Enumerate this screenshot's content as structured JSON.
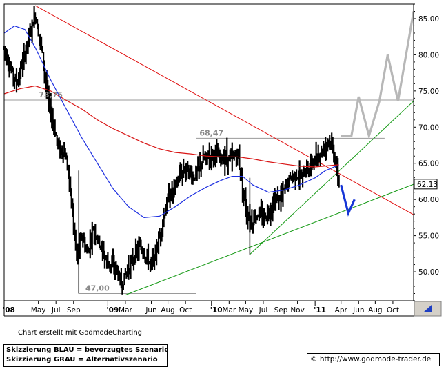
{
  "chart_data": {
    "type": "line",
    "title": "",
    "ylim": [
      46,
      87
    ],
    "y_ticks": [
      "85.00",
      "80.00",
      "75.00",
      "70.00",
      "65.00",
      "60.00",
      "55.00",
      "50.00"
    ],
    "x_ticks": [
      "'08",
      "May",
      "Jul",
      "Sep",
      "'09",
      "Mar",
      "Jun",
      "Aug",
      "Oct",
      "'10",
      "Mar",
      "May",
      "Jul",
      "Sep",
      "Nov",
      "'11",
      "Apr",
      "Jun",
      "Aug",
      "Oct"
    ],
    "last_price": "62.13",
    "annotations": [
      "73,75",
      "68,47",
      "47,00"
    ],
    "price_path": [
      [
        2008.0,
        81.0
      ],
      [
        2008.05,
        78.5
      ],
      [
        2008.12,
        76.0
      ],
      [
        2008.18,
        79.0
      ],
      [
        2008.25,
        83.0
      ],
      [
        2008.3,
        85.5
      ],
      [
        2008.36,
        81.0
      ],
      [
        2008.42,
        74.0
      ],
      [
        2008.48,
        70.0
      ],
      [
        2008.53,
        67.0
      ],
      [
        2008.58,
        66.5
      ],
      [
        2008.62,
        64.0
      ],
      [
        2008.66,
        58.0
      ],
      [
        2008.7,
        52.0
      ],
      [
        2008.75,
        55.0
      ],
      [
        2008.8,
        52.5
      ],
      [
        2008.86,
        56.0
      ],
      [
        2008.92,
        54.0
      ],
      [
        2008.97,
        52.0
      ],
      [
        2009.03,
        51.0
      ],
      [
        2009.08,
        50.5
      ],
      [
        2009.13,
        48.0
      ],
      [
        2009.18,
        50.0
      ],
      [
        2009.25,
        52.0
      ],
      [
        2009.31,
        53.5
      ],
      [
        2009.37,
        52.0
      ],
      [
        2009.42,
        51.0
      ],
      [
        2009.47,
        53.0
      ],
      [
        2009.53,
        57.0
      ],
      [
        2009.58,
        60.0
      ],
      [
        2009.64,
        61.5
      ],
      [
        2009.7,
        63.5
      ],
      [
        2009.76,
        64.5
      ],
      [
        2009.82,
        63.0
      ],
      [
        2009.87,
        64.0
      ],
      [
        2009.92,
        65.5
      ],
      [
        2009.97,
        66.0
      ],
      [
        2010.03,
        66.5
      ],
      [
        2010.08,
        65.5
      ],
      [
        2010.14,
        66.0
      ],
      [
        2010.2,
        65.5
      ],
      [
        2010.25,
        66.5
      ],
      [
        2010.3,
        62.0
      ],
      [
        2010.34,
        58.0
      ],
      [
        2010.39,
        57.0
      ],
      [
        2010.45,
        58.0
      ],
      [
        2010.5,
        57.5
      ],
      [
        2010.56,
        58.5
      ],
      [
        2010.62,
        60.0
      ],
      [
        2010.68,
        60.5
      ],
      [
        2010.74,
        62.5
      ],
      [
        2010.8,
        63.5
      ],
      [
        2010.86,
        63.0
      ],
      [
        2010.91,
        64.0
      ],
      [
        2010.97,
        65.0
      ],
      [
        2011.03,
        66.0
      ],
      [
        2011.08,
        67.0
      ],
      [
        2011.13,
        68.3
      ],
      [
        2011.17,
        67.0
      ],
      [
        2011.2,
        65.0
      ],
      [
        2011.23,
        62.13
      ]
    ],
    "sma_blue": [
      [
        2008.0,
        83.0
      ],
      [
        2008.1,
        84.0
      ],
      [
        2008.2,
        83.5
      ],
      [
        2008.3,
        81.0
      ],
      [
        2008.45,
        76.5
      ],
      [
        2008.6,
        72.5
      ],
      [
        2008.75,
        68.5
      ],
      [
        2008.9,
        65.0
      ],
      [
        2009.05,
        61.5
      ],
      [
        2009.2,
        59.0
      ],
      [
        2009.35,
        57.5
      ],
      [
        2009.5,
        57.7
      ],
      [
        2009.65,
        59.0
      ],
      [
        2009.8,
        60.5
      ],
      [
        2009.95,
        61.7
      ],
      [
        2010.1,
        62.7
      ],
      [
        2010.2,
        63.2
      ],
      [
        2010.3,
        63.2
      ],
      [
        2010.4,
        62.0
      ],
      [
        2010.55,
        61.0
      ],
      [
        2010.7,
        61.3
      ],
      [
        2010.85,
        62.0
      ],
      [
        2011.0,
        63.0
      ],
      [
        2011.1,
        64.0
      ],
      [
        2011.2,
        64.6
      ],
      [
        2011.23,
        64.7
      ]
    ],
    "sma_red": [
      [
        2008.0,
        74.6
      ],
      [
        2008.15,
        75.3
      ],
      [
        2008.3,
        75.7
      ],
      [
        2008.45,
        75.0
      ],
      [
        2008.6,
        73.7
      ],
      [
        2008.75,
        72.5
      ],
      [
        2008.9,
        71.0
      ],
      [
        2009.05,
        69.8
      ],
      [
        2009.2,
        68.8
      ],
      [
        2009.35,
        67.8
      ],
      [
        2009.5,
        67.0
      ],
      [
        2009.65,
        66.5
      ],
      [
        2009.8,
        66.3
      ],
      [
        2009.95,
        66.0
      ],
      [
        2010.1,
        65.9
      ],
      [
        2010.25,
        65.9
      ],
      [
        2010.4,
        65.6
      ],
      [
        2010.55,
        65.2
      ],
      [
        2010.7,
        64.9
      ],
      [
        2010.85,
        64.6
      ],
      [
        2011.0,
        64.5
      ],
      [
        2011.15,
        64.7
      ],
      [
        2011.23,
        64.8
      ]
    ],
    "resistance_line_red": [
      [
        2008.3,
        86.8
      ],
      [
        2011.95,
        57.9
      ]
    ],
    "support_line_green_long": [
      [
        2009.17,
        46.8
      ],
      [
        2011.95,
        62.1
      ]
    ],
    "support_line_green_short": [
      [
        2010.37,
        52.4
      ],
      [
        2011.95,
        73.6
      ]
    ],
    "level_lines": [
      {
        "label": "73,75",
        "y": 73.75,
        "x_from": 2008.0,
        "x_to": 2011.95
      },
      {
        "label": "68,47",
        "y": 68.47,
        "x_from": 2009.85,
        "x_to": 2011.67
      },
      {
        "label": "47,00",
        "y": 47.0,
        "x_from": 2008.72,
        "x_to": 2009.85
      }
    ],
    "scenario_blue": [
      [
        2011.25,
        62.0
      ],
      [
        2011.32,
        58.1
      ],
      [
        2011.38,
        60.0
      ]
    ],
    "scenario_grey": [
      [
        2011.25,
        68.8
      ],
      [
        2011.35,
        68.8
      ],
      [
        2011.42,
        74.2
      ],
      [
        2011.52,
        68.8
      ],
      [
        2011.62,
        73.6
      ],
      [
        2011.7,
        80.0
      ],
      [
        2011.8,
        73.6
      ],
      [
        2011.95,
        86.0
      ]
    ]
  },
  "credit": "Chart erstellt mit GodmodeCharting",
  "legend": {
    "blue": "Skizzierung BLAU = bevorzugtes Szenario",
    "grey": "Skizzierung GRAU = Alternativszenario"
  },
  "url": "© http://www.godmode-trader.de",
  "colors": {
    "price": "#000000",
    "sma_blue": "#1c2ee0",
    "sma_red": "#d81414",
    "trend_red": "#e01010",
    "trend_green": "#169a16",
    "level": "#9a9a9a",
    "scenario_blue": "#1535d6",
    "scenario_grey": "#b7b7b7",
    "corner_icon": "#1e3fc2"
  },
  "icons": {
    "corner": "arrow-icon"
  }
}
